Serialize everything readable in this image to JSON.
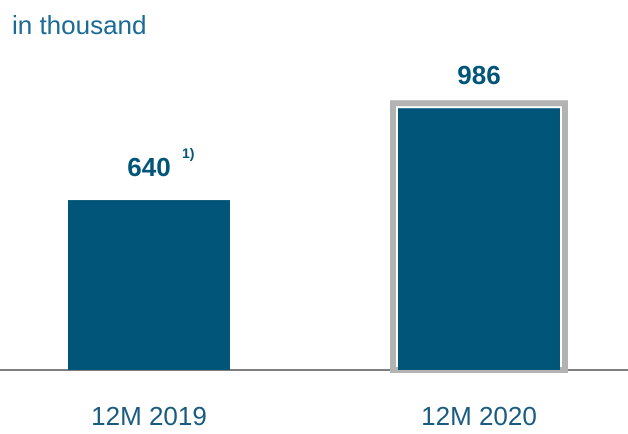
{
  "chart_data": {
    "type": "bar",
    "subtitle": "in thousand",
    "categories": [
      "12M 2019",
      "12M 2020"
    ],
    "values": [
      640,
      986
    ],
    "footnote_marks": [
      "1)",
      null
    ],
    "color": "#005578",
    "highlight": [
      false,
      true
    ],
    "highlight_color": "#b3b3b3"
  }
}
